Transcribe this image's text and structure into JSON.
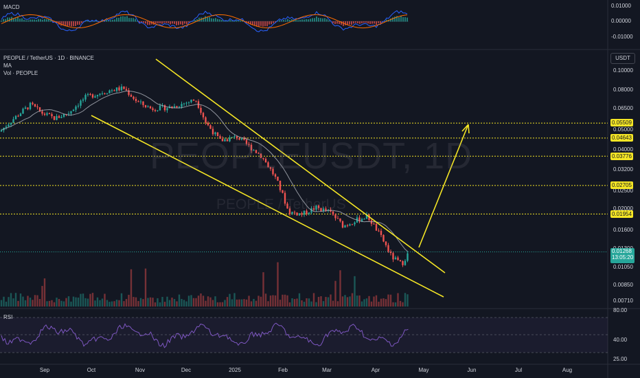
{
  "watermark": {
    "ticker": "PEOPLEUSDT, 1D",
    "subtitle": "PEOPLE / TetherUS"
  },
  "panes": {
    "macd": {
      "label": "MACD",
      "ticks": [
        "0.01000",
        "0.00000",
        "-0.01000"
      ]
    },
    "main": {
      "title": "PEOPLE / TetherUS · 1D · BINANCE",
      "ma_label": "MA",
      "vol_label": "Vol · PEOPLE",
      "currency": "USDT",
      "ticks": [
        "0.10000",
        "0.08000",
        "0.06500",
        "0.05000",
        "0.04000",
        "0.03200",
        "0.02500",
        "0.02000",
        "0.01600",
        "0.01300",
        "0.01050",
        "0.00850",
        "0.00710"
      ]
    },
    "rsi": {
      "label": "RSI",
      "ticks": [
        "80.00",
        "40.00",
        "25.00"
      ]
    }
  },
  "price_levels": [
    {
      "value": "0.05509",
      "price": 0.05509
    },
    {
      "value": "0.04643",
      "price": 0.04643
    },
    {
      "value": "0.03776",
      "price": 0.03776
    },
    {
      "value": "0.02705",
      "price": 0.02705
    },
    {
      "value": "0.01954",
      "price": 0.01954
    }
  ],
  "current_price": {
    "value": "0.01268",
    "countdown": "13:05:20",
    "price": 0.01268
  },
  "time_axis": [
    "Sep",
    "Oct",
    "Nov",
    "Dec",
    "2025",
    "Feb",
    "Mar",
    "Apr",
    "May",
    "Jun",
    "Jul",
    "Aug"
  ],
  "colors": {
    "up": "#26a69a",
    "down": "#ef5350",
    "level": "#f5e625",
    "background": "#131722",
    "ma": "#b2b5be",
    "rsi": "#7e57c2",
    "macd": "#2962ff",
    "signal": "#ff6d00"
  }
}
